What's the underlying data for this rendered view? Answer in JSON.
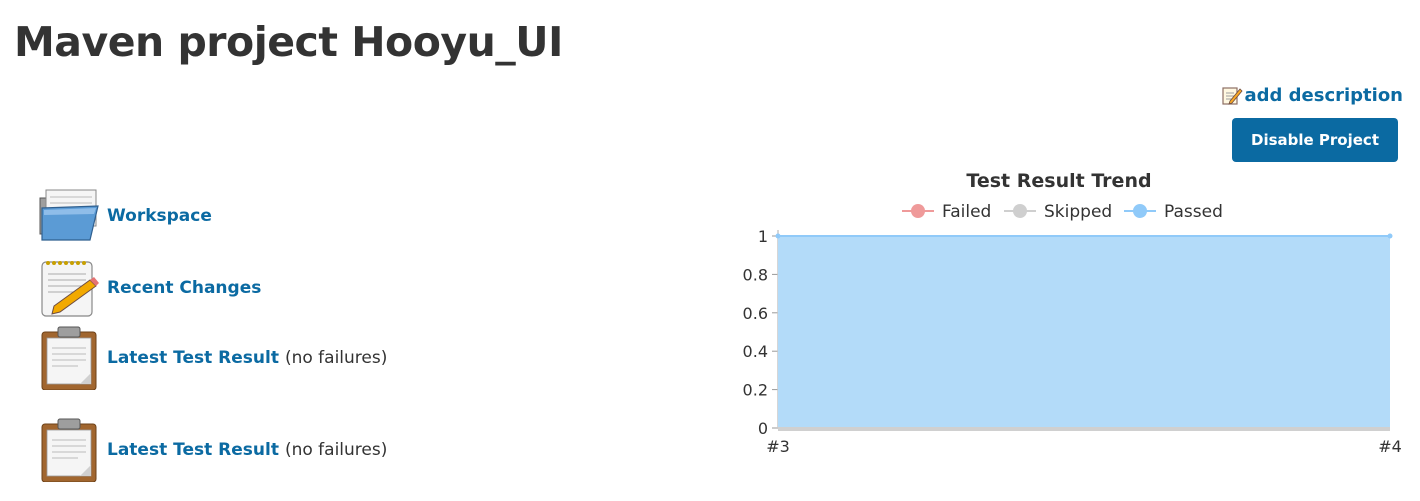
{
  "page": {
    "title": "Maven project Hooyu_UI",
    "add_description": "add description",
    "disable_button": "Disable Project"
  },
  "tasks": [
    {
      "label": "Workspace",
      "icon": "folder-icon"
    },
    {
      "label": "Recent Changes",
      "icon": "notepad-icon"
    },
    {
      "label": "Latest Test Result",
      "note": "(no failures)",
      "icon": "clipboard-icon"
    },
    {
      "label": "Latest Test Result",
      "note": "(no failures)",
      "icon": "clipboard-icon"
    }
  ],
  "colors": {
    "link": "#0b6aa2",
    "failed": "#ef9a9a",
    "skipped": "#cfcfcf",
    "passed": "#90caf9",
    "passed_fill": "#b3dbf9"
  },
  "chart_data": {
    "type": "area",
    "title": "Test Result Trend",
    "categories": [
      "#3",
      "#4"
    ],
    "series": [
      {
        "name": "Failed",
        "values": [
          0,
          0
        ]
      },
      {
        "name": "Skipped",
        "values": [
          0,
          0
        ]
      },
      {
        "name": "Passed",
        "values": [
          1,
          1
        ]
      }
    ],
    "ylim": [
      0,
      1
    ],
    "yticks": [
      "0",
      "0.2",
      "0.4",
      "0.6",
      "0.8",
      "1"
    ],
    "legend": "top",
    "grid": true
  }
}
